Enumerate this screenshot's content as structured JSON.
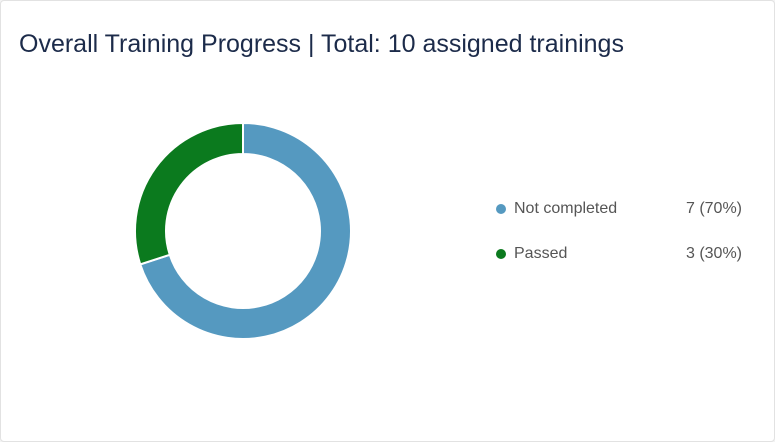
{
  "chart_data": {
    "type": "donut",
    "title": "Overall Training Progress | Total: 10 assigned trainings",
    "categories": [
      "Not completed",
      "Passed"
    ],
    "values": [
      7,
      3
    ],
    "value_labels": [
      "7 (70%)",
      "3 (30%)"
    ],
    "colors": [
      "#5599c0",
      "#0b7a1e"
    ]
  }
}
